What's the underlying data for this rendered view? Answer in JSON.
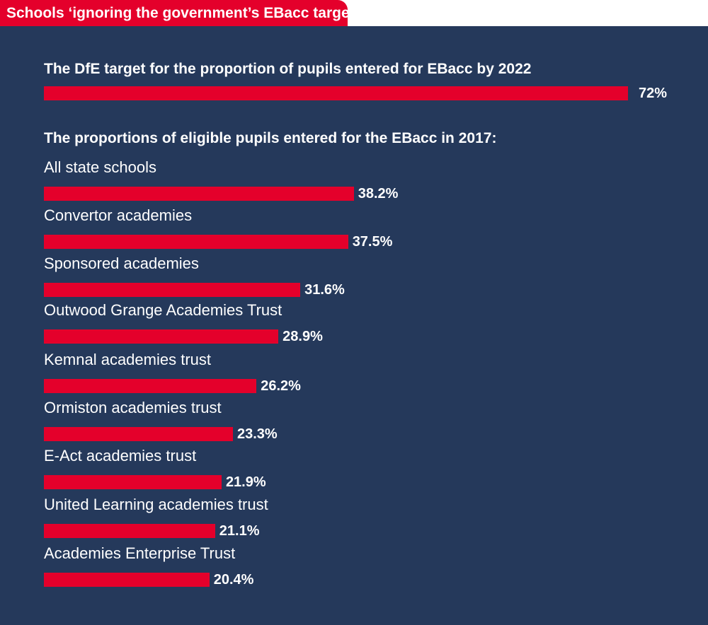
{
  "chart_data": {
    "type": "bar",
    "orientation": "horizontal",
    "title": "Schools ‘ignoring the government’s EBacc target’",
    "target": {
      "heading": "The DfE target for the proportion of pupils entered for EBacc by 2022",
      "value": 72,
      "label": "72%"
    },
    "subtitle": "The proportions of eligible pupils entered for the EBacc in 2017:",
    "categories": [
      "All state schools",
      "Convertor academies",
      "Sponsored academies",
      "Outwood Grange Academies Trust",
      "Kemnal academies trust",
      "Ormiston academies trust",
      "E-Act academies trust",
      "United Learning academies trust",
      "Academies Enterprise Trust"
    ],
    "values": [
      38.2,
      37.5,
      31.6,
      28.9,
      26.2,
      23.3,
      21.9,
      21.1,
      20.4
    ],
    "value_labels": [
      "38.2%",
      "37.5%",
      "31.6%",
      "28.9%",
      "26.2%",
      "23.3%",
      "21.9%",
      "21.1%",
      "20.4%"
    ],
    "unit": "%",
    "xlim": [
      0,
      72
    ],
    "colors": {
      "bar": "#e4002b",
      "background": "#25395b"
    }
  }
}
